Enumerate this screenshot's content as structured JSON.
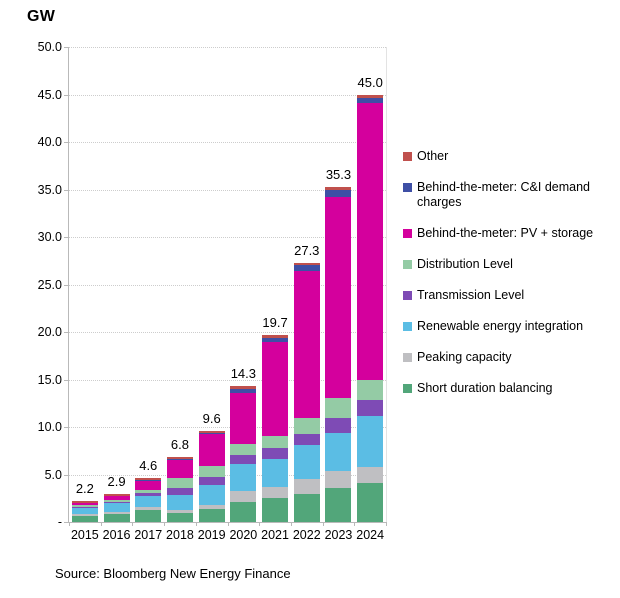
{
  "title": "GW",
  "source": "Source: Bloomberg New Energy Finance",
  "y_axis": {
    "labels": [
      "50.0",
      "45.0",
      "40.0",
      "35.0",
      "30.0",
      "25.0",
      "20.0",
      "15.0",
      "10.0",
      "5.0",
      "-"
    ],
    "values": [
      50,
      45,
      40,
      35,
      30,
      25,
      20,
      15,
      10,
      5,
      0
    ]
  },
  "chart_data": {
    "type": "bar",
    "stacked": true,
    "title": "GW",
    "xlabel": "",
    "ylabel": "GW",
    "ylim": [
      0,
      50
    ],
    "ytick_step": 5,
    "grid": "horizontal-dotted",
    "legend_position": "right",
    "categories": [
      "2015",
      "2016",
      "2017",
      "2018",
      "2019",
      "2020",
      "2021",
      "2022",
      "2023",
      "2024"
    ],
    "total_labels": [
      "2.2",
      "2.9",
      "4.6",
      "6.8",
      "9.6",
      "14.3",
      "19.7",
      "27.3",
      "35.3",
      "45.0"
    ],
    "totals": [
      2.2,
      2.9,
      4.6,
      6.8,
      9.6,
      14.3,
      19.7,
      27.3,
      35.3,
      45.0
    ],
    "series_note": "series listed bottom-to-top of stack; values estimated from bar segment heights",
    "series": [
      {
        "name": "Short duration balancing",
        "color": "#52A67A",
        "values": [
          0.6,
          0.85,
          1.3,
          1.0,
          1.4,
          2.1,
          2.5,
          3.0,
          3.6,
          4.1
        ]
      },
      {
        "name": "Peaking capacity",
        "color": "#BFBFC2",
        "values": [
          0.2,
          0.25,
          0.3,
          0.3,
          0.4,
          1.2,
          1.2,
          1.5,
          1.8,
          1.7
        ]
      },
      {
        "name": "Renewable energy integration",
        "color": "#5BBDE4",
        "values": [
          0.7,
          0.9,
          1.1,
          1.5,
          2.1,
          2.8,
          2.9,
          3.6,
          4.0,
          5.4
        ]
      },
      {
        "name": "Transmission Level",
        "color": "#7E4BB5",
        "values": [
          0.1,
          0.15,
          0.35,
          0.8,
          0.8,
          1.0,
          1.2,
          1.2,
          1.6,
          1.7
        ]
      },
      {
        "name": "Distribution Level",
        "color": "#94CBA5",
        "values": [
          0.15,
          0.2,
          0.35,
          1.0,
          1.2,
          1.1,
          1.2,
          1.6,
          2.1,
          2.1
        ]
      },
      {
        "name": "Behind-the-meter: PV + storage",
        "color": "#D4009D",
        "values": [
          0.25,
          0.35,
          0.9,
          1.9,
          3.4,
          5.4,
          9.9,
          15.5,
          21.1,
          29.1
        ]
      },
      {
        "name": "Behind-the-meter: C&I demand charges",
        "color": "#3E4FA5",
        "values": [
          0.05,
          0.05,
          0.1,
          0.1,
          0.1,
          0.4,
          0.5,
          0.6,
          0.8,
          0.6
        ]
      },
      {
        "name": "Other",
        "color": "#C0504D",
        "values": [
          0.15,
          0.15,
          0.2,
          0.2,
          0.2,
          0.3,
          0.3,
          0.3,
          0.3,
          0.3
        ]
      }
    ]
  }
}
